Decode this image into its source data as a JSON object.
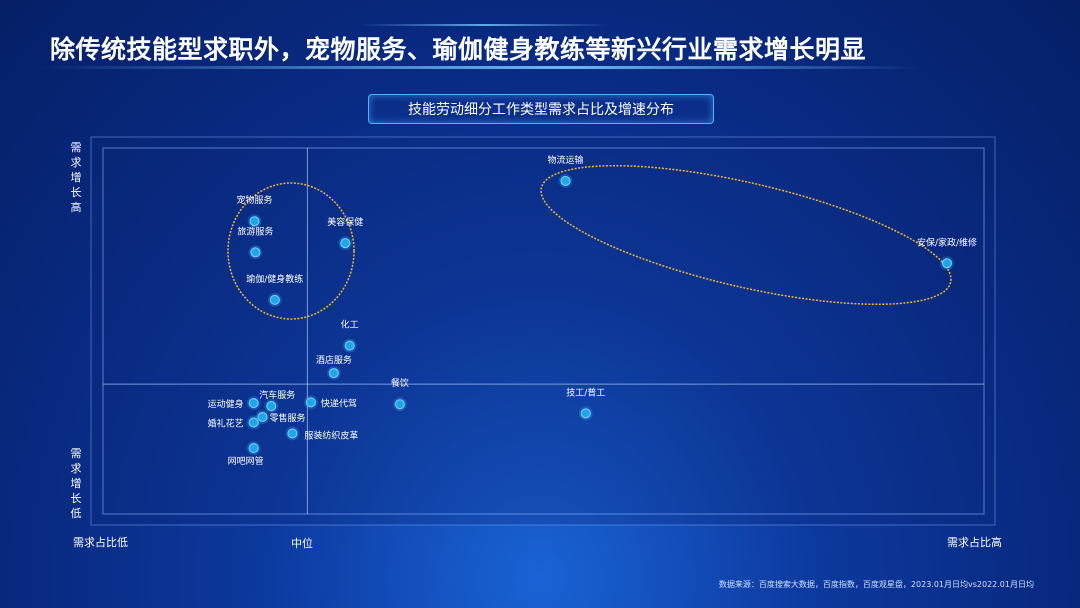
{
  "header": {
    "title": "除传统技能型求职外，宠物服务、瑜伽健身教练等新兴行业需求增长明显",
    "subtitle": "技能劳动细分工作类型需求占比及增速分布"
  },
  "axes": {
    "y_high": "需求增长高",
    "y_low": "需求增长低",
    "x_low": "需求占比低",
    "x_mid": "中位",
    "x_high": "需求占比高"
  },
  "source": "数据来源：百度搜索大数据，百度指数，百度观星盘，2023.01月日均vs2022.01月日均",
  "colors": {
    "point": "#1ea7e8",
    "ellipse": "#f2b631",
    "grid": "#8fb4ff"
  },
  "chart_data": {
    "type": "scatter",
    "title": "技能劳动细分工作类型需求占比及增速分布",
    "xlabel": "需求占比",
    "ylabel": "需求增长",
    "xlim": [
      0,
      100
    ],
    "ylim": [
      0,
      100
    ],
    "x_mid": 23.2,
    "y_mid": 35.5,
    "points": [
      {
        "label": "物流运输",
        "x": 52.5,
        "y": 91
      },
      {
        "label": "安保/家政/维修",
        "x": 95.8,
        "y": 68.5
      },
      {
        "label": "宠物服务",
        "x": 17.2,
        "y": 80
      },
      {
        "label": "旅游服务",
        "x": 17.3,
        "y": 71.5
      },
      {
        "label": "美容保健",
        "x": 27.5,
        "y": 74
      },
      {
        "label": "瑜伽/健身教练",
        "x": 19.5,
        "y": 58.5
      },
      {
        "label": "化工",
        "x": 28,
        "y": 46
      },
      {
        "label": "酒店服务",
        "x": 26.2,
        "y": 38.5
      },
      {
        "label": "餐饮",
        "x": 33.7,
        "y": 30
      },
      {
        "label": "技工/普工",
        "x": 54.8,
        "y": 27.5
      },
      {
        "label": "快递代驾",
        "x": 23.6,
        "y": 30.5
      },
      {
        "label": "汽车服务",
        "x": 19.1,
        "y": 29.5
      },
      {
        "label": "运动健身",
        "x": 17.1,
        "y": 30.3
      },
      {
        "label": "零售服务",
        "x": 18.1,
        "y": 26.5
      },
      {
        "label": "婚礼花艺",
        "x": 17.1,
        "y": 25
      },
      {
        "label": "服装纺织皮革",
        "x": 21.5,
        "y": 22
      },
      {
        "label": "网吧网管",
        "x": 17.1,
        "y": 18
      }
    ],
    "highlight_groups": [
      [
        "宠物服务",
        "旅游服务",
        "美容保健",
        "瑜伽/健身教练"
      ],
      [
        "物流运输",
        "安保/家政/维修"
      ]
    ]
  }
}
